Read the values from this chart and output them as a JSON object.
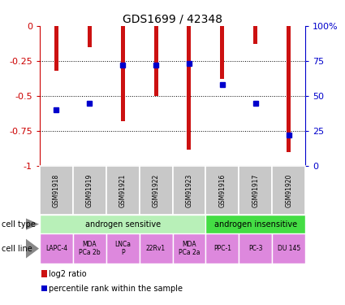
{
  "title": "GDS1699 / 42348",
  "samples": [
    "GSM91918",
    "GSM91919",
    "GSM91921",
    "GSM91922",
    "GSM91923",
    "GSM91916",
    "GSM91917",
    "GSM91920"
  ],
  "log2_ratio": [
    -0.32,
    -0.15,
    -0.68,
    -0.5,
    -0.88,
    -0.38,
    -0.13,
    -0.9
  ],
  "percentile_rank_pct": [
    40,
    45,
    72,
    72,
    73,
    58,
    45,
    22
  ],
  "cell_types": [
    {
      "label": "androgen sensitive",
      "start": 0,
      "end": 5,
      "color": "#b8f0b8"
    },
    {
      "label": "androgen insensitive",
      "start": 5,
      "end": 8,
      "color": "#44dd44"
    }
  ],
  "cell_lines": [
    {
      "label": "LAPC-4",
      "start": 0,
      "end": 1
    },
    {
      "label": "MDA\nPCa 2b",
      "start": 1,
      "end": 2
    },
    {
      "label": "LNCa\nP",
      "start": 2,
      "end": 3
    },
    {
      "label": "22Rv1",
      "start": 3,
      "end": 4
    },
    {
      "label": "MDA\nPCa 2a",
      "start": 4,
      "end": 5
    },
    {
      "label": "PPC-1",
      "start": 5,
      "end": 6
    },
    {
      "label": "PC-3",
      "start": 6,
      "end": 7
    },
    {
      "label": "DU 145",
      "start": 7,
      "end": 8
    }
  ],
  "cell_line_color": "#dd88dd",
  "bar_color": "#cc1111",
  "dot_color": "#0000cc",
  "sample_bg_color": "#c8c8c8",
  "ylim_left": [
    -1,
    0
  ],
  "ylim_right": [
    0,
    100
  ],
  "yticks_left": [
    0,
    -0.25,
    -0.5,
    -0.75,
    -1
  ],
  "yticks_right": [
    100,
    75,
    50,
    25,
    0
  ],
  "left_axis_color": "#cc0000",
  "right_axis_color": "#0000cc",
  "bar_width": 0.12,
  "dot_size": 5
}
